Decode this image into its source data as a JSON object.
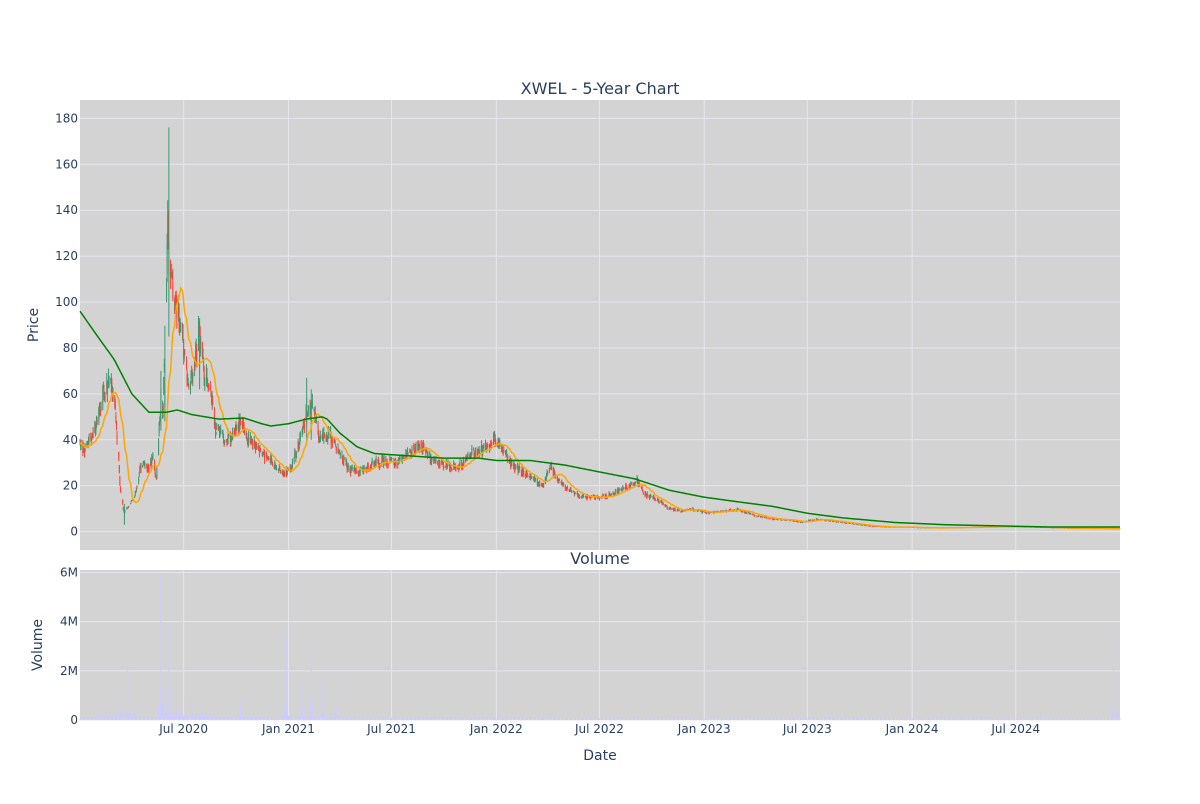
{
  "chart_data": [
    {
      "type": "candlestick",
      "title": "XWEL - 5-Year Chart",
      "ylabel": "Price",
      "ylim": [
        -8,
        188
      ],
      "x_range": [
        "2020-01-01",
        "2024-12-31"
      ],
      "y_ticks": [
        0,
        20,
        40,
        60,
        80,
        100,
        120,
        140,
        160,
        180
      ],
      "grid": true,
      "legend": "none",
      "colors": {
        "up": "#3d9970",
        "down": "#ff4136",
        "ma_short": "#ffa500",
        "ma_long": "#008000",
        "plot_bg": "#d3d3d3",
        "grid": "#e6e6f0"
      },
      "price_anchors": [
        [
          "2020-01-01",
          38
        ],
        [
          "2020-01-10",
          36
        ],
        [
          "2020-01-20",
          42
        ],
        [
          "2020-02-01",
          48
        ],
        [
          "2020-02-10",
          60
        ],
        [
          "2020-02-20",
          64
        ],
        [
          "2020-03-01",
          62
        ],
        [
          "2020-03-05",
          45
        ],
        [
          "2020-03-12",
          18
        ],
        [
          "2020-03-18",
          8
        ],
        [
          "2020-03-28",
          12
        ],
        [
          "2020-04-08",
          17
        ],
        [
          "2020-04-18",
          30
        ],
        [
          "2020-04-28",
          27
        ],
        [
          "2020-05-08",
          32
        ],
        [
          "2020-05-14",
          22
        ],
        [
          "2020-05-20",
          50
        ],
        [
          "2020-05-26",
          56
        ],
        [
          "2020-06-03",
          130
        ],
        [
          "2020-06-08",
          112
        ],
        [
          "2020-06-14",
          100
        ],
        [
          "2020-06-22",
          95
        ],
        [
          "2020-07-01",
          80
        ],
        [
          "2020-07-10",
          60
        ],
        [
          "2020-07-20",
          72
        ],
        [
          "2020-07-28",
          88
        ],
        [
          "2020-08-06",
          68
        ],
        [
          "2020-08-16",
          62
        ],
        [
          "2020-08-26",
          45
        ],
        [
          "2020-09-10",
          40
        ],
        [
          "2020-09-25",
          42
        ],
        [
          "2020-10-08",
          48
        ],
        [
          "2020-10-20",
          41
        ],
        [
          "2020-11-10",
          36
        ],
        [
          "2020-12-01",
          31
        ],
        [
          "2020-12-20",
          25
        ],
        [
          "2021-01-05",
          28
        ],
        [
          "2021-01-20",
          38
        ],
        [
          "2021-02-01",
          52
        ],
        [
          "2021-02-12",
          55
        ],
        [
          "2021-02-25",
          40
        ],
        [
          "2021-03-15",
          42
        ],
        [
          "2021-04-01",
          34
        ],
        [
          "2021-04-20",
          27
        ],
        [
          "2021-05-10",
          26
        ],
        [
          "2021-06-01",
          30
        ],
        [
          "2021-06-20",
          31
        ],
        [
          "2021-07-10",
          30
        ],
        [
          "2021-08-01",
          34
        ],
        [
          "2021-08-20",
          38
        ],
        [
          "2021-09-10",
          31
        ],
        [
          "2021-10-05",
          29
        ],
        [
          "2021-10-25",
          28
        ],
        [
          "2021-11-20",
          34
        ],
        [
          "2021-12-10",
          36
        ],
        [
          "2021-12-28",
          41
        ],
        [
          "2022-01-15",
          35
        ],
        [
          "2022-02-01",
          28
        ],
        [
          "2022-02-20",
          26
        ],
        [
          "2022-03-10",
          22
        ],
        [
          "2022-03-25",
          20
        ],
        [
          "2022-04-05",
          29
        ],
        [
          "2022-04-20",
          22
        ],
        [
          "2022-05-10",
          18
        ],
        [
          "2022-06-01",
          15
        ],
        [
          "2022-07-01",
          15
        ],
        [
          "2022-08-01",
          17
        ],
        [
          "2022-08-20",
          20
        ],
        [
          "2022-09-05",
          22
        ],
        [
          "2022-09-20",
          16
        ],
        [
          "2022-10-10",
          14
        ],
        [
          "2022-11-01",
          10
        ],
        [
          "2022-11-20",
          9
        ],
        [
          "2022-12-10",
          10
        ],
        [
          "2023-01-05",
          8
        ],
        [
          "2023-02-01",
          9
        ],
        [
          "2023-03-01",
          9.5
        ],
        [
          "2023-04-01",
          7
        ],
        [
          "2023-05-01",
          5.5
        ],
        [
          "2023-06-01",
          5
        ],
        [
          "2023-06-20",
          4
        ],
        [
          "2023-07-15",
          5.5
        ],
        [
          "2023-08-15",
          4.5
        ],
        [
          "2023-09-15",
          3.5
        ],
        [
          "2023-10-15",
          2.5
        ],
        [
          "2023-11-15",
          2
        ],
        [
          "2023-12-15",
          2
        ],
        [
          "2024-02-01",
          1.6
        ],
        [
          "2024-04-01",
          1.8
        ],
        [
          "2024-06-01",
          2.2
        ],
        [
          "2024-08-01",
          2.0
        ],
        [
          "2024-10-01",
          1.5
        ],
        [
          "2024-12-31",
          1.3
        ]
      ],
      "spikes": [
        {
          "date": "2020-06-05",
          "high": 176,
          "low": 85
        },
        {
          "date": "2020-06-06",
          "high": 138,
          "low": 100
        },
        {
          "date": "2020-05-23",
          "high": 70,
          "low": 44
        },
        {
          "date": "2020-05-30",
          "high": 68,
          "low": 48
        },
        {
          "date": "2020-03-19",
          "high": 12,
          "low": 3
        },
        {
          "date": "2020-07-29",
          "high": 93,
          "low": 62
        },
        {
          "date": "2021-02-02",
          "high": 67,
          "low": 38
        },
        {
          "date": "2021-02-10",
          "high": 62,
          "low": 40
        }
      ],
      "sma_long_anchors": [
        [
          "2020-01-01",
          96
        ],
        [
          "2020-02-01",
          85
        ],
        [
          "2020-03-01",
          75
        ],
        [
          "2020-04-01",
          60
        ],
        [
          "2020-05-01",
          52
        ],
        [
          "2020-06-01",
          52
        ],
        [
          "2020-06-20",
          53
        ],
        [
          "2020-07-15",
          51
        ],
        [
          "2020-09-01",
          49
        ],
        [
          "2020-10-15",
          49.5
        ],
        [
          "2020-11-15",
          47
        ],
        [
          "2020-12-01",
          46
        ],
        [
          "2021-01-01",
          47
        ],
        [
          "2021-02-01",
          49
        ],
        [
          "2021-03-01",
          50
        ],
        [
          "2021-03-10",
          49
        ],
        [
          "2021-04-01",
          43
        ],
        [
          "2021-05-01",
          37
        ],
        [
          "2021-06-01",
          34
        ],
        [
          "2021-08-01",
          33
        ],
        [
          "2021-10-01",
          32
        ],
        [
          "2021-12-01",
          32
        ],
        [
          "2022-01-01",
          31
        ],
        [
          "2022-03-01",
          31
        ],
        [
          "2022-05-01",
          29
        ],
        [
          "2022-07-01",
          26
        ],
        [
          "2022-09-01",
          23
        ],
        [
          "2022-11-01",
          18
        ],
        [
          "2023-01-01",
          15
        ],
        [
          "2023-03-01",
          13
        ],
        [
          "2023-05-01",
          11
        ],
        [
          "2023-07-01",
          8
        ],
        [
          "2023-09-01",
          6
        ],
        [
          "2023-12-01",
          4
        ],
        [
          "2024-03-01",
          3
        ],
        [
          "2024-06-01",
          2.5
        ],
        [
          "2024-09-01",
          2
        ],
        [
          "2024-12-31",
          2
        ]
      ]
    },
    {
      "type": "bar",
      "title": "Volume",
      "xlabel": "Date",
      "ylabel": "Volume",
      "ylim": [
        0,
        6100000
      ],
      "y_ticks": [
        0,
        2000000,
        4000000,
        6000000
      ],
      "y_tick_labels": [
        "0",
        "2M",
        "4M",
        "6M"
      ],
      "x_ticks": [
        "2020-07-01",
        "2021-01-01",
        "2021-07-01",
        "2022-01-01",
        "2022-07-01",
        "2023-01-01",
        "2023-07-01",
        "2024-01-01",
        "2024-07-01"
      ],
      "x_tick_labels": [
        "Jul 2020",
        "Jan 2021",
        "Jul 2021",
        "Jan 2022",
        "Jul 2022",
        "Jan 2023",
        "Jul 2023",
        "Jan 2024",
        "Jul 2024"
      ],
      "colors": {
        "bar": "#ccccff",
        "plot_bg": "#d3d3d3"
      },
      "volume_spikes": [
        [
          "2020-03-10",
          1500000
        ],
        [
          "2020-03-25",
          2400000
        ],
        [
          "2020-04-05",
          1600000
        ],
        [
          "2020-05-22",
          5900000
        ],
        [
          "2020-06-05",
          3800000
        ],
        [
          "2020-06-20",
          1200000
        ],
        [
          "2020-07-15",
          900000
        ],
        [
          "2020-08-01",
          1300000
        ],
        [
          "2020-10-10",
          1900000
        ],
        [
          "2020-12-28",
          3600000
        ],
        [
          "2021-01-25",
          1400000
        ],
        [
          "2021-02-10",
          3200000
        ],
        [
          "2021-03-01",
          1700000
        ],
        [
          "2021-03-25",
          1700000
        ],
        [
          "2022-04-05",
          350000
        ],
        [
          "2024-05-01",
          250000
        ],
        [
          "2024-08-15",
          600000
        ],
        [
          "2024-12-20",
          3600000
        ]
      ]
    }
  ]
}
